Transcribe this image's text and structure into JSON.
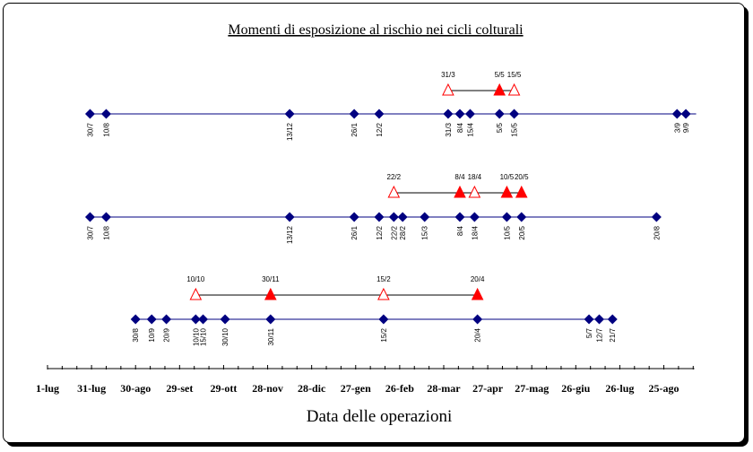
{
  "chart_data": {
    "type": "scatter",
    "title": "Momenti di esposizione al rischio nei cicli colturali",
    "xlabel": "Data delle operazioni",
    "x_range_days": [
      0,
      442
    ],
    "x_ticks": [
      {
        "day": 0,
        "label": "1-lug"
      },
      {
        "day": 30,
        "label": "31-lug"
      },
      {
        "day": 60,
        "label": "30-ago"
      },
      {
        "day": 90,
        "label": "29-set"
      },
      {
        "day": 120,
        "label": "29-ott"
      },
      {
        "day": 150,
        "label": "28-nov"
      },
      {
        "day": 180,
        "label": "28-dic"
      },
      {
        "day": 210,
        "label": "27-gen"
      },
      {
        "day": 240,
        "label": "26-feb"
      },
      {
        "day": 270,
        "label": "28-mar"
      },
      {
        "day": 300,
        "label": "27-apr"
      },
      {
        "day": 330,
        "label": "27-mag"
      },
      {
        "day": 360,
        "label": "26-giu"
      },
      {
        "day": 390,
        "label": "26-lug"
      },
      {
        "day": 420,
        "label": "25-ago"
      }
    ],
    "rows": [
      {
        "operations": [
          {
            "day": 29,
            "label": "30/7"
          },
          {
            "day": 40,
            "label": "10/8"
          },
          {
            "day": 165,
            "label": "13/12"
          },
          {
            "day": 209,
            "label": "26/1"
          },
          {
            "day": 226,
            "label": "12/2"
          },
          {
            "day": 273,
            "label": "31/3"
          },
          {
            "day": 281,
            "label": "8/4"
          },
          {
            "day": 288,
            "label": "15/4"
          },
          {
            "day": 308,
            "label": "5/5"
          },
          {
            "day": 318,
            "label": "15/5"
          },
          {
            "day": 429,
            "label": "3/9"
          },
          {
            "day": 435,
            "label": "9/9"
          }
        ],
        "exposure": [
          {
            "day": 273,
            "label": "31/3",
            "filled": false
          },
          {
            "day": 308,
            "label": "5/5",
            "filled": true
          },
          {
            "day": 318,
            "label": "15/5",
            "filled": false
          }
        ]
      },
      {
        "operations": [
          {
            "day": 29,
            "label": "30/7"
          },
          {
            "day": 40,
            "label": "10/8"
          },
          {
            "day": 165,
            "label": "13/12"
          },
          {
            "day": 209,
            "label": "26/1"
          },
          {
            "day": 226,
            "label": "12/2"
          },
          {
            "day": 236,
            "label": "22/2"
          },
          {
            "day": 242,
            "label": "28/2"
          },
          {
            "day": 257,
            "label": "15/3"
          },
          {
            "day": 281,
            "label": "8/4"
          },
          {
            "day": 291,
            "label": "18/4"
          },
          {
            "day": 313,
            "label": "10/5"
          },
          {
            "day": 323,
            "label": "20/5"
          },
          {
            "day": 415,
            "label": "20/8"
          }
        ],
        "exposure": [
          {
            "day": 236,
            "label": "22/2",
            "filled": false
          },
          {
            "day": 281,
            "label": "8/4",
            "filled": true
          },
          {
            "day": 291,
            "label": "18/4",
            "filled": false
          },
          {
            "day": 313,
            "label": "10/5",
            "filled": true
          },
          {
            "day": 323,
            "label": "20/5",
            "filled": true
          }
        ]
      },
      {
        "operations": [
          {
            "day": 60,
            "label": "30/8"
          },
          {
            "day": 71,
            "label": "10/9"
          },
          {
            "day": 81,
            "label": "20/9"
          },
          {
            "day": 101,
            "label": "10/10"
          },
          {
            "day": 106,
            "label": "15/10"
          },
          {
            "day": 121,
            "label": "30/10"
          },
          {
            "day": 152,
            "label": "30/11"
          },
          {
            "day": 229,
            "label": "15/2"
          },
          {
            "day": 293,
            "label": "20/4"
          },
          {
            "day": 369,
            "label": "5/7"
          },
          {
            "day": 376,
            "label": "12/7"
          },
          {
            "day": 385,
            "label": "21/7"
          }
        ],
        "exposure": [
          {
            "day": 101,
            "label": "10/10",
            "filled": false
          },
          {
            "day": 152,
            "label": "30/11",
            "filled": true
          },
          {
            "day": 229,
            "label": "15/2",
            "filled": false
          },
          {
            "day": 293,
            "label": "20/4",
            "filled": true
          }
        ]
      }
    ],
    "colors": {
      "operation": "#000080",
      "exposure": "#ff0000",
      "line": "#000080",
      "exposure_line": "#000000"
    }
  }
}
